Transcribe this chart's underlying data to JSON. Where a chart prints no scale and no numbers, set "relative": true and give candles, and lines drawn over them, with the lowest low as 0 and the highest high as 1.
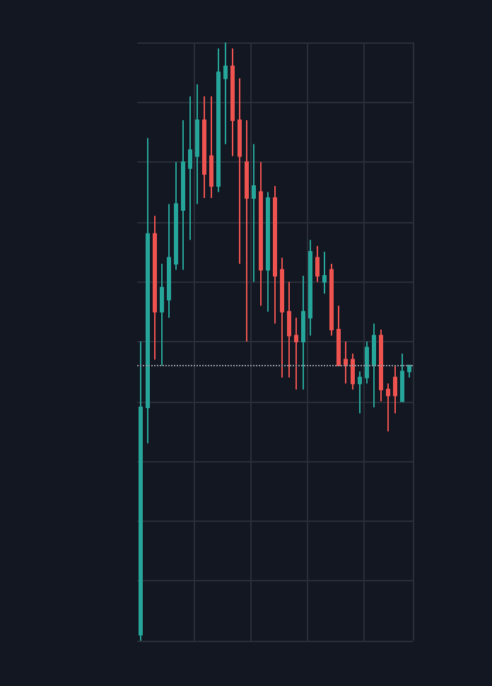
{
  "chart_data": {
    "type": "candlestick",
    "relative": true,
    "grid": true,
    "categories": [
      null,
      null,
      null,
      null,
      null,
      null,
      null,
      null,
      null,
      null,
      null,
      null,
      null,
      null,
      null,
      null,
      null,
      null,
      null,
      null,
      null,
      null,
      null,
      null,
      null,
      null,
      null,
      null,
      null,
      null,
      null,
      null,
      null,
      null,
      null,
      null,
      null,
      null,
      null
    ],
    "ohlc": [
      [
        0.01,
        0.5,
        0,
        0.39
      ],
      [
        0.39,
        0.84,
        0.33,
        0.68
      ],
      [
        0.68,
        0.71,
        0.47,
        0.55
      ],
      [
        0.55,
        0.63,
        0.46,
        0.59
      ],
      [
        0.57,
        0.73,
        0.54,
        0.64
      ],
      [
        0.63,
        0.8,
        0.62,
        0.73
      ],
      [
        0.72,
        0.87,
        0.62,
        0.8
      ],
      [
        0.79,
        0.91,
        0.67,
        0.82
      ],
      [
        0.81,
        0.93,
        0.73,
        0.87
      ],
      [
        0.87,
        0.91,
        0.74,
        0.78
      ],
      [
        0.81,
        0.91,
        0.74,
        0.76
      ],
      [
        0.76,
        0.99,
        0.75,
        0.95
      ],
      [
        0.94,
        1,
        0.83,
        0.96
      ],
      [
        0.96,
        0.99,
        0.81,
        0.87
      ],
      [
        0.87,
        0.94,
        0.63,
        0.81
      ],
      [
        0.8,
        0.87,
        0.5,
        0.74
      ],
      [
        0.74,
        0.83,
        0.6,
        0.76
      ],
      [
        0.75,
        0.8,
        0.56,
        0.62
      ],
      [
        0.62,
        0.75,
        0.55,
        0.74
      ],
      [
        0.74,
        0.76,
        0.53,
        0.61
      ],
      [
        0.62,
        0.64,
        0.44,
        0.55
      ],
      [
        0.55,
        0.6,
        0.44,
        0.51
      ],
      [
        0.51,
        0.54,
        0.42,
        0.5
      ],
      [
        0.5,
        0.61,
        0.42,
        0.55
      ],
      [
        0.54,
        0.67,
        0.51,
        0.65
      ],
      [
        0.64,
        0.66,
        0.6,
        0.61
      ],
      [
        0.6,
        0.65,
        0.58,
        0.61
      ],
      [
        0.62,
        0.63,
        0.51,
        0.52
      ],
      [
        0.52,
        0.56,
        0.46,
        0.46
      ],
      [
        0.47,
        0.5,
        0.43,
        0.46
      ],
      [
        0.47,
        0.48,
        0.42,
        0.43
      ],
      [
        0.43,
        0.45,
        0.38,
        0.44
      ],
      [
        0.44,
        0.5,
        0.43,
        0.49
      ],
      [
        0.46,
        0.53,
        0.39,
        0.51
      ],
      [
        0.51,
        0.52,
        0.4,
        0.42
      ],
      [
        0.42,
        0.43,
        0.35,
        0.41
      ],
      [
        0.44,
        0.46,
        0.38,
        0.41
      ],
      [
        0.4,
        0.48,
        0.4,
        0.45
      ],
      [
        0.45,
        0.46,
        0.44,
        0.46
      ]
    ],
    "ref_lines": [
      {
        "axis": "y",
        "value": 0.46,
        "color": "#9598a1",
        "line_style": "dotted"
      }
    ]
  }
}
